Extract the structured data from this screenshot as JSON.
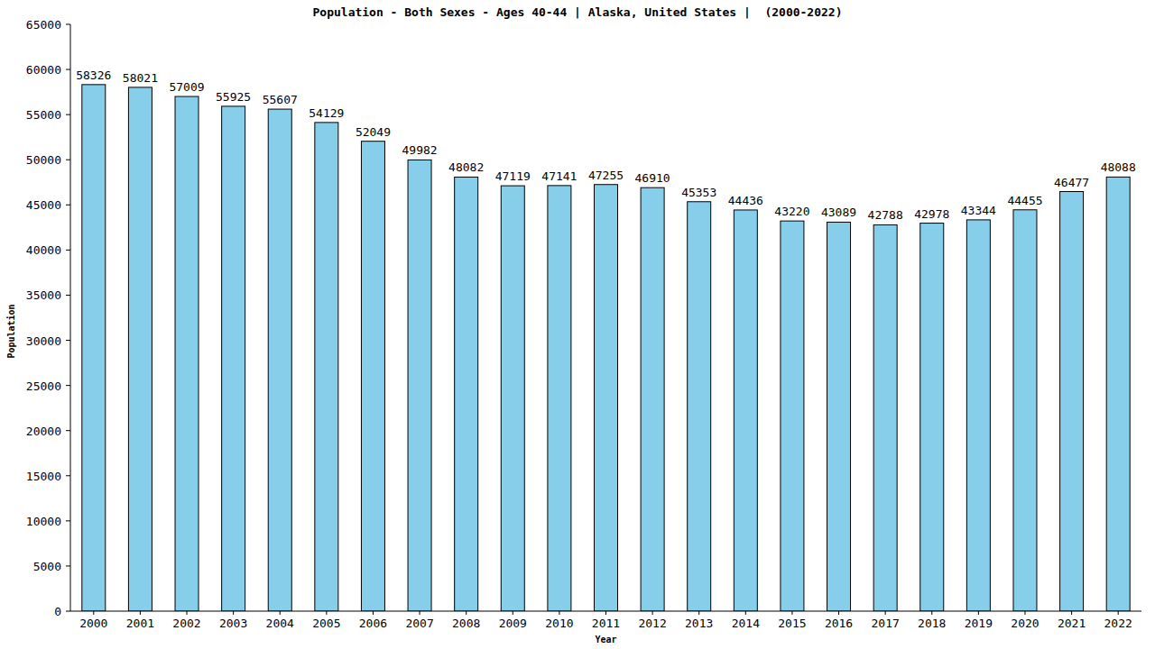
{
  "chart_data": {
    "type": "bar",
    "title": "Population - Both Sexes - Ages 40-44 | Alaska, United States |  (2000-2022)",
    "x_label": "Year",
    "y_label": "Population",
    "categories": [
      "2000",
      "2001",
      "2002",
      "2003",
      "2004",
      "2005",
      "2006",
      "2007",
      "2008",
      "2009",
      "2010",
      "2011",
      "2012",
      "2013",
      "2014",
      "2015",
      "2016",
      "2017",
      "2018",
      "2019",
      "2020",
      "2021",
      "2022"
    ],
    "values": [
      58326,
      58021,
      57009,
      55925,
      55607,
      54129,
      52049,
      49982,
      48082,
      47119,
      47141,
      47255,
      46910,
      45353,
      44436,
      43220,
      43089,
      42788,
      42978,
      43344,
      44455,
      46477,
      48088
    ],
    "color": "#87ceeb",
    "ylim": [
      0,
      65000
    ],
    "yticks": [
      0,
      5000,
      10000,
      15000,
      20000,
      25000,
      30000,
      35000,
      40000,
      45000,
      50000,
      55000,
      60000,
      65000
    ],
    "grid": false,
    "data_labels": true
  }
}
